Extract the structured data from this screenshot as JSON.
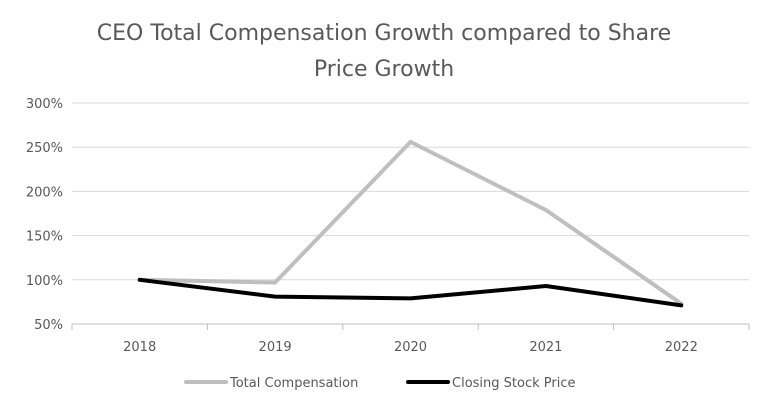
{
  "chart_data": {
    "type": "line",
    "title_lines": [
      "CEO Total Compensation Growth compared to Share",
      "Price Growth"
    ],
    "categories": [
      "2018",
      "2019",
      "2020",
      "2021",
      "2022"
    ],
    "y_ticks": [
      "50%",
      "100%",
      "150%",
      "200%",
      "250%",
      "300%"
    ],
    "y_tick_values": [
      50,
      100,
      150,
      200,
      250,
      300
    ],
    "ylim": [
      50,
      300
    ],
    "grid": true,
    "legend_position": "bottom",
    "series": [
      {
        "name": "Total Compensation",
        "values": [
          100,
          97,
          256,
          179,
          73
        ],
        "color": "#bfbfbf"
      },
      {
        "name": "Closing Stock Price",
        "values": [
          100,
          81,
          79,
          93,
          71
        ],
        "color": "#000000"
      }
    ]
  }
}
